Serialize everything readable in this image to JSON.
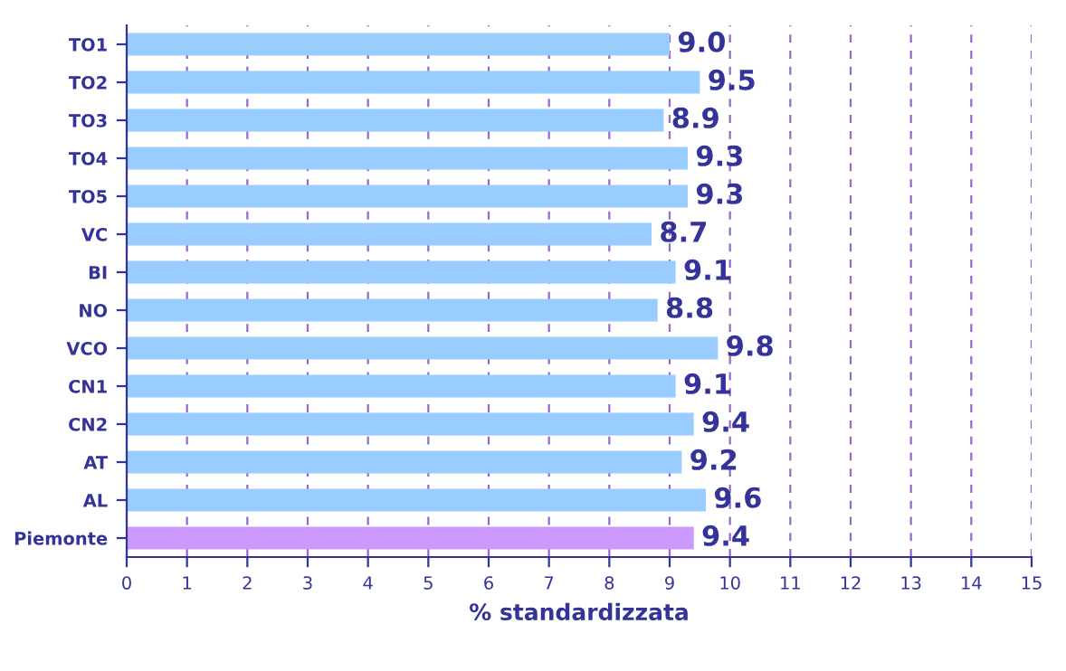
{
  "chart_data": {
    "type": "bar",
    "orientation": "horizontal",
    "xlabel": "% standardizzata",
    "categories": [
      "TO1",
      "TO2",
      "TO3",
      "TO4",
      "TO5",
      "VC",
      "BI",
      "NO",
      "VCO",
      "CN1",
      "CN2",
      "AT",
      "AL",
      "Piemonte"
    ],
    "values": [
      9.0,
      9.5,
      8.9,
      9.3,
      9.3,
      8.7,
      9.1,
      8.8,
      9.8,
      9.1,
      9.4,
      9.2,
      9.6,
      9.4
    ],
    "colors": [
      "#99ccff",
      "#99ccff",
      "#99ccff",
      "#99ccff",
      "#99ccff",
      "#99ccff",
      "#99ccff",
      "#99ccff",
      "#99ccff",
      "#99ccff",
      "#99ccff",
      "#99ccff",
      "#99ccff",
      "#cc99ff"
    ],
    "value_labels": [
      "9.0",
      "9.5",
      "8.9",
      "9.3",
      "9.3",
      "8.7",
      "9.1",
      "8.8",
      "9.8",
      "9.1",
      "9.4",
      "9.2",
      "9.6",
      "9.4"
    ],
    "xlim": [
      0,
      15
    ],
    "xticks": [
      0,
      1,
      2,
      3,
      4,
      5,
      6,
      7,
      8,
      9,
      10,
      11,
      12,
      13,
      14,
      15
    ],
    "grid": "x",
    "legend": false
  }
}
